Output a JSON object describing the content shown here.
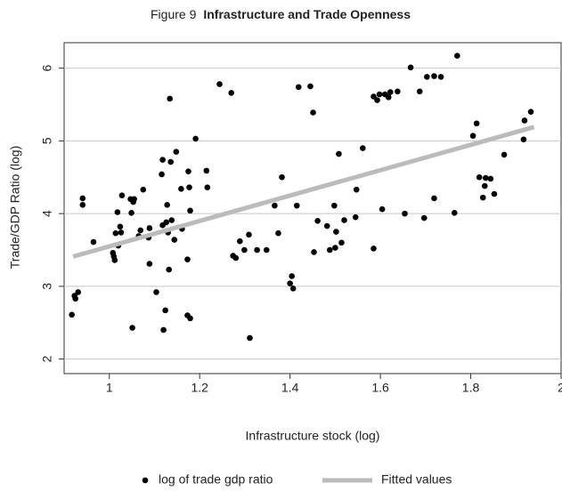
{
  "chart_data": {
    "type": "scatter",
    "figure_label": "Figure 9",
    "title": "Infrastructure and Trade Openness",
    "x_label": "Infrastructure stock (log)",
    "y_label": "Trade/GDP Ratio (log)",
    "xlim": [
      0.9,
      2.0
    ],
    "ylim": [
      1.8,
      6.35
    ],
    "xticks": [
      1,
      1.2,
      1.4,
      1.6,
      1.8,
      2
    ],
    "yticks": [
      2,
      3,
      4,
      5,
      6
    ],
    "grid": true,
    "series": [
      {
        "name": "log of trade gdp ratio",
        "color": "#000000",
        "kind": "points",
        "x": [
          0.917,
          0.923,
          0.925,
          0.931,
          0.941,
          0.941,
          0.965,
          1.008,
          1.01,
          1.012,
          1.014,
          1.018,
          1.02,
          1.024,
          1.026,
          1.028,
          1.047,
          1.049,
          1.053,
          1.055,
          1.051,
          1.065,
          1.069,
          1.075,
          1.087,
          1.089,
          1.089,
          1.104,
          1.116,
          1.118,
          1.118,
          1.12,
          1.124,
          1.126,
          1.128,
          1.13,
          1.132,
          1.134,
          1.136,
          1.138,
          1.144,
          1.148,
          1.159,
          1.161,
          1.173,
          1.173,
          1.175,
          1.177,
          1.179,
          1.179,
          1.191,
          1.215,
          1.217,
          1.244,
          1.27,
          1.274,
          1.28,
          1.289,
          1.299,
          1.309,
          1.311,
          1.327,
          1.348,
          1.366,
          1.374,
          1.382,
          1.4,
          1.404,
          1.407,
          1.415,
          1.419,
          1.445,
          1.451,
          1.453,
          1.461,
          1.482,
          1.488,
          1.498,
          1.5,
          1.502,
          1.508,
          1.514,
          1.52,
          1.545,
          1.547,
          1.561,
          1.585,
          1.585,
          1.593,
          1.598,
          1.604,
          1.61,
          1.618,
          1.622,
          1.638,
          1.654,
          1.667,
          1.687,
          1.697,
          1.703,
          1.719,
          1.719,
          1.734,
          1.764,
          1.77,
          1.805,
          1.813,
          1.819,
          1.827,
          1.831,
          1.833,
          1.844,
          1.852,
          1.874,
          1.917,
          1.919,
          1.933
        ],
        "values": [
          2.61,
          2.87,
          2.83,
          2.92,
          4.21,
          4.12,
          3.61,
          3.46,
          3.41,
          3.36,
          3.73,
          4.02,
          3.56,
          3.82,
          3.74,
          4.25,
          4.2,
          4.01,
          4.16,
          4.2,
          2.43,
          3.69,
          3.77,
          4.33,
          3.67,
          3.31,
          3.8,
          2.92,
          4.54,
          3.84,
          4.74,
          2.4,
          2.67,
          3.88,
          4.12,
          3.74,
          3.23,
          5.58,
          4.71,
          3.91,
          3.64,
          4.85,
          4.34,
          3.79,
          2.6,
          3.37,
          4.58,
          4.36,
          2.56,
          4.04,
          5.03,
          4.59,
          4.36,
          5.78,
          5.66,
          3.42,
          3.39,
          3.62,
          3.5,
          3.71,
          2.29,
          3.5,
          3.5,
          4.11,
          3.73,
          4.5,
          3.04,
          3.14,
          2.97,
          4.11,
          5.74,
          5.75,
          5.39,
          3.47,
          3.9,
          3.83,
          3.5,
          4.11,
          3.53,
          3.75,
          4.82,
          3.6,
          3.91,
          3.95,
          4.33,
          4.9,
          3.52,
          5.61,
          5.56,
          5.64,
          4.06,
          5.64,
          5.6,
          5.67,
          5.68,
          4.0,
          6.01,
          5.68,
          3.94,
          5.88,
          5.89,
          4.21,
          5.88,
          4.01,
          6.17,
          5.07,
          5.24,
          4.5,
          4.22,
          4.38,
          4.49,
          4.48,
          4.27,
          4.81,
          5.02,
          5.28,
          5.4
        ]
      },
      {
        "name": "Fitted values",
        "color": "#bbbbbb",
        "kind": "line",
        "x": [
          0.92,
          1.94
        ],
        "values": [
          3.41,
          5.19
        ]
      }
    ]
  }
}
